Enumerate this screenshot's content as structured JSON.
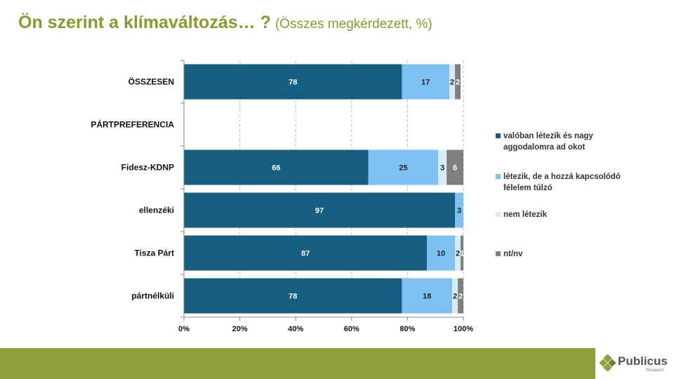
{
  "header": {
    "title": "Ön szerint a klímaváltozás… ?",
    "subtitle": "(Összes megkérdezett, %)"
  },
  "brand": {
    "name": "Publicus",
    "tagline": "Research"
  },
  "colors": {
    "title": "#8a9a2a",
    "footer": "#8fa03a",
    "series": [
      "#165e80",
      "#7dc1f2",
      "#d4ecfa",
      "#7f7f7f"
    ]
  },
  "chart_data": {
    "type": "bar",
    "orientation": "horizontal",
    "stacked": true,
    "categories": [
      "ÖSSZESEN",
      "PÁRTPREFERENCIA",
      "Fidesz-KDNP",
      "ellenzéki",
      "Tisza Párt",
      "pártnélküli"
    ],
    "series": [
      {
        "name": "valóban létezik és nagy aggodalomra ad okot",
        "values": [
          78,
          null,
          66,
          97,
          87,
          78
        ],
        "color": "#165e80"
      },
      {
        "name": "létezik, de a hozzá kapcsolódó félelem túlzó",
        "values": [
          17,
          null,
          25,
          3,
          10,
          18
        ],
        "color": "#7dc1f2"
      },
      {
        "name": "nem létezik",
        "values": [
          2,
          null,
          3,
          0,
          2,
          2
        ],
        "color": "#d4ecfa"
      },
      {
        "name": "nt/nv",
        "values": [
          2,
          null,
          6,
          0,
          1,
          2
        ],
        "color": "#7f7f7f"
      }
    ],
    "data_labels": [
      [
        "78",
        "17",
        "2",
        "2"
      ],
      [
        "",
        "",
        "",
        ""
      ],
      [
        "66",
        "25",
        "3",
        "6"
      ],
      [
        "97",
        "3",
        "",
        ""
      ],
      [
        "87",
        "10",
        "2",
        "1"
      ],
      [
        "78",
        "18",
        "2",
        "2"
      ]
    ],
    "xlim": [
      0,
      100
    ],
    "xticks": [
      "0%",
      "20%",
      "40%",
      "60%",
      "80%",
      "100%"
    ],
    "gridlines": "dashed vertical",
    "legend_position": "right"
  }
}
